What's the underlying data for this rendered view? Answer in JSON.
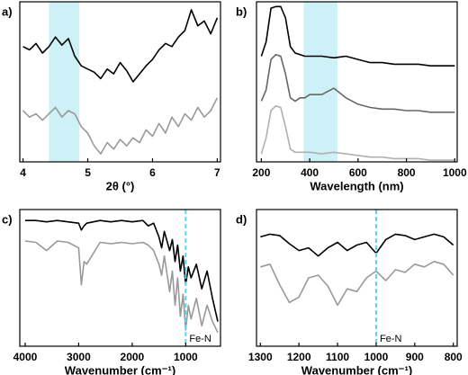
{
  "chart_data": [
    {
      "type": "line",
      "panel_label": "a)",
      "xlabel": "2θ (°)",
      "xlim": [
        3.95,
        7.05
      ],
      "xticks": [
        4,
        5,
        6,
        7
      ],
      "ylim": [
        0,
        100
      ],
      "highlight": [
        4.4,
        4.87
      ],
      "highlight_color": "#cdf1f7",
      "x": [
        4.0,
        4.1,
        4.2,
        4.3,
        4.4,
        4.5,
        4.6,
        4.7,
        4.8,
        4.9,
        5.0,
        5.1,
        5.2,
        5.3,
        5.4,
        5.5,
        5.6,
        5.7,
        5.8,
        5.9,
        6.0,
        6.1,
        6.2,
        6.3,
        6.4,
        6.5,
        6.6,
        6.7,
        6.8,
        6.9,
        7.0
      ],
      "series": [
        {
          "color": "#000000",
          "values": [
            72,
            70,
            74,
            68,
            72,
            78,
            73,
            77,
            66,
            60,
            58,
            56,
            52,
            58,
            55,
            62,
            57,
            50,
            55,
            60,
            64,
            70,
            74,
            72,
            78,
            82,
            95,
            85,
            88,
            80,
            90
          ]
        },
        {
          "color": "#999999",
          "values": [
            32,
            28,
            30,
            26,
            30,
            34,
            28,
            32,
            30,
            22,
            18,
            10,
            5,
            12,
            8,
            14,
            10,
            15,
            12,
            20,
            16,
            24,
            18,
            28,
            22,
            30,
            26,
            34,
            28,
            32,
            40
          ]
        }
      ]
    },
    {
      "type": "line",
      "panel_label": "b)",
      "xlabel": "Wavelength (nm)",
      "xlim": [
        180,
        1010
      ],
      "xticks": [
        200,
        400,
        600,
        800,
        1000
      ],
      "ylim": [
        0,
        100
      ],
      "highlight": [
        375,
        515
      ],
      "highlight_color": "#cdf1f7",
      "x": [
        200,
        220,
        240,
        260,
        280,
        300,
        320,
        340,
        360,
        380,
        400,
        450,
        500,
        550,
        600,
        650,
        700,
        750,
        800,
        850,
        900,
        950,
        1000
      ],
      "series": [
        {
          "color": "#000000",
          "values": [
            66,
            75,
            96,
            97,
            97,
            90,
            72,
            68,
            67,
            66,
            66,
            66,
            65,
            66,
            64,
            62,
            62,
            61,
            61,
            61,
            60,
            60,
            60
          ]
        },
        {
          "color": "#666666",
          "values": [
            38,
            45,
            64,
            67,
            66,
            55,
            40,
            38,
            40,
            40,
            42,
            42,
            46,
            40,
            36,
            34,
            33,
            33,
            32,
            32,
            31,
            31,
            31
          ]
        },
        {
          "color": "#b0b0b0",
          "values": [
            5,
            15,
            32,
            35,
            34,
            22,
            8,
            6,
            6,
            6,
            6,
            5,
            6,
            5,
            4,
            3,
            3,
            2,
            2,
            2,
            1,
            1,
            1
          ]
        }
      ]
    },
    {
      "type": "line",
      "panel_label": "c)",
      "xlabel": "Wavenumber (cm⁻¹)",
      "xlim": [
        4100,
        350
      ],
      "xticks": [
        4000,
        3000,
        2000,
        1000
      ],
      "ylim": [
        0,
        100
      ],
      "annotation": {
        "text": "Fe-N",
        "x": 1000
      },
      "annotation_color": "#5ad4f0",
      "x": [
        4000,
        3800,
        3600,
        3400,
        3200,
        3000,
        2950,
        2900,
        2850,
        2600,
        2400,
        2200,
        2000,
        1800,
        1700,
        1600,
        1500,
        1450,
        1400,
        1300,
        1250,
        1200,
        1150,
        1100,
        1050,
        1000,
        950,
        900,
        800,
        700,
        600,
        500,
        400
      ],
      "series": [
        {
          "color": "#000000",
          "values": [
            92,
            92,
            91,
            92,
            91,
            90,
            85,
            88,
            90,
            92,
            91,
            92,
            91,
            92,
            88,
            90,
            80,
            72,
            84,
            70,
            78,
            62,
            74,
            55,
            66,
            45,
            58,
            50,
            60,
            42,
            55,
            35,
            18
          ]
        },
        {
          "color": "#999999",
          "values": [
            77,
            76,
            70,
            77,
            76,
            72,
            45,
            62,
            60,
            76,
            75,
            76,
            75,
            76,
            74,
            70,
            60,
            52,
            66,
            40,
            55,
            30,
            50,
            22,
            38,
            12,
            30,
            20,
            35,
            15,
            30,
            18,
            10
          ]
        }
      ]
    },
    {
      "type": "line",
      "panel_label": "d)",
      "xlabel": "Wavenumber (cm⁻¹)",
      "xlim": [
        1310,
        790
      ],
      "xticks": [
        1300,
        1200,
        1100,
        1000,
        900,
        800
      ],
      "ylim": [
        0,
        100
      ],
      "annotation": {
        "text": "Fe-N",
        "x": 1000
      },
      "annotation_color": "#5ad4f0",
      "x": [
        1300,
        1275,
        1250,
        1225,
        1200,
        1175,
        1150,
        1125,
        1100,
        1075,
        1050,
        1025,
        1000,
        975,
        950,
        925,
        900,
        875,
        850,
        825,
        800
      ],
      "series": [
        {
          "color": "#000000",
          "values": [
            80,
            82,
            81,
            75,
            70,
            72,
            66,
            72,
            76,
            70,
            74,
            76,
            68,
            78,
            82,
            81,
            78,
            80,
            82,
            80,
            74
          ]
        },
        {
          "color": "#999999",
          "values": [
            58,
            60,
            45,
            32,
            36,
            50,
            52,
            44,
            30,
            42,
            40,
            50,
            55,
            48,
            56,
            54,
            60,
            58,
            62,
            60,
            52
          ]
        }
      ]
    }
  ]
}
